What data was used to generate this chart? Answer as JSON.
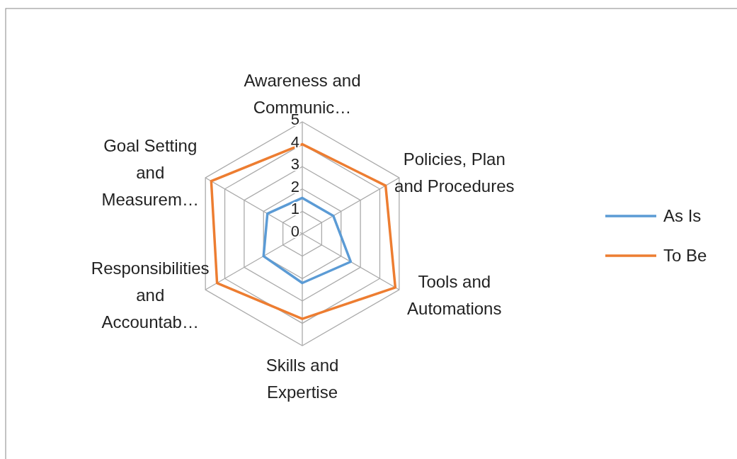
{
  "chart_data": {
    "type": "radar",
    "categories": [
      "Awareness and Communic…",
      "Policies, Plan and Procedures",
      "Tools and Automations",
      "Skills and Expertise",
      "Responsibilities and Accountab…",
      "Goal Setting and Measurem…"
    ],
    "series": [
      {
        "name": "As Is",
        "color": "#5b9bd5",
        "values": [
          1.6,
          1.6,
          2.5,
          2.2,
          2.0,
          1.8
        ]
      },
      {
        "name": "To Be",
        "color": "#ed7d31",
        "values": [
          4.0,
          4.3,
          4.8,
          3.8,
          4.4,
          4.7
        ]
      }
    ],
    "ylim": [
      0,
      5
    ],
    "yticks": [
      0,
      1,
      2,
      3,
      4,
      5
    ],
    "grid": true,
    "legend": "right",
    "marker": "none",
    "line_style": "solid"
  }
}
